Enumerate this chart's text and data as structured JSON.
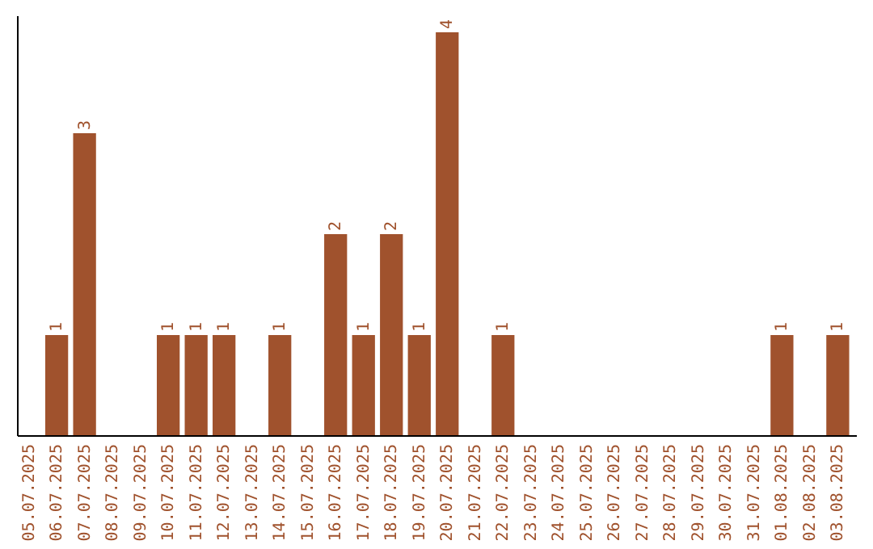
{
  "chart_data": {
    "type": "bar",
    "categories": [
      "05.07.2025",
      "06.07.2025",
      "07.07.2025",
      "08.07.2025",
      "09.07.2025",
      "10.07.2025",
      "11.07.2025",
      "12.07.2025",
      "13.07.2025",
      "14.07.2025",
      "15.07.2025",
      "16.07.2025",
      "17.07.2025",
      "18.07.2025",
      "19.07.2025",
      "20.07.2025",
      "21.07.2025",
      "22.07.2025",
      "23.07.2025",
      "24.07.2025",
      "25.07.2025",
      "26.07.2025",
      "27.07.2025",
      "28.07.2025",
      "29.07.2025",
      "30.07.2025",
      "31.07.2025",
      "01.08.2025",
      "02.08.2025",
      "03.08.2025"
    ],
    "values": [
      0,
      1,
      3,
      0,
      0,
      1,
      1,
      1,
      0,
      1,
      0,
      2,
      1,
      2,
      1,
      4,
      0,
      1,
      0,
      0,
      0,
      0,
      0,
      0,
      0,
      0,
      0,
      1,
      0,
      1
    ],
    "value_labels": [
      null,
      "1",
      "3",
      null,
      null,
      "1",
      "1",
      "1",
      null,
      "1",
      null,
      "2",
      "1",
      "2",
      "1",
      "4",
      null,
      "1",
      null,
      null,
      null,
      null,
      null,
      null,
      null,
      null,
      null,
      "1",
      null,
      "1"
    ],
    "color": "#a0522d"
  }
}
